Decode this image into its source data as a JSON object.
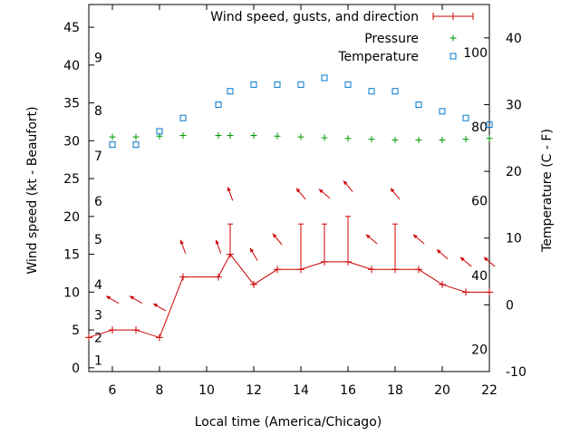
{
  "chart_data": {
    "type": "line",
    "xlabel": "Local time (America/Chicago)",
    "ylabel": "Wind speed (kt - Beaufort)",
    "y2label": "Temperature (C - F)",
    "xlim": [
      5,
      22
    ],
    "ylim": [
      -0.5,
      48
    ],
    "y2lim": [
      -10,
      45
    ],
    "xticks": [
      6,
      8,
      10,
      12,
      14,
      16,
      18,
      20,
      22
    ],
    "yticks": [
      0,
      5,
      10,
      15,
      20,
      25,
      30,
      35,
      40,
      45
    ],
    "y2ticks": [
      -10,
      0,
      10,
      20,
      30,
      40
    ],
    "beaufort_labels": [
      {
        "text": "1",
        "y": 1
      },
      {
        "text": "2",
        "y": 4
      },
      {
        "text": "3",
        "y": 7
      },
      {
        "text": "4",
        "y": 11
      },
      {
        "text": "5",
        "y": 17
      },
      {
        "text": "6",
        "y": 22
      },
      {
        "text": "7",
        "y": 28
      },
      {
        "text": "8",
        "y": 34
      },
      {
        "text": "9",
        "y": 41
      }
    ],
    "fahrenheit_labels": [
      {
        "text": "20",
        "c": -6.7
      },
      {
        "text": "40",
        "c": 4.4
      },
      {
        "text": "60",
        "c": 15.6
      },
      {
        "text": "80",
        "c": 26.7
      },
      {
        "text": "100",
        "c": 37.8
      }
    ],
    "legend": {
      "position": "top-right",
      "entries": [
        "Wind speed, gusts, and direction",
        "Pressure",
        "Temperature"
      ]
    },
    "colors": {
      "wind": "#cc0000",
      "pressure": "#009900",
      "temperature": "#0077cc",
      "arrow": "#cc0000"
    },
    "series": [
      {
        "name": "Wind speed, gusts, and direction",
        "kind": "wind",
        "x": [
          5,
          6,
          7,
          8,
          9,
          10.5,
          11,
          12,
          13,
          14,
          15,
          16,
          17,
          18,
          19,
          20,
          21,
          22
        ],
        "y": [
          4,
          5,
          5,
          4,
          12,
          12,
          15,
          11,
          13,
          13,
          14,
          14,
          13,
          13,
          13,
          11,
          10,
          10
        ],
        "gust": [
          null,
          null,
          null,
          null,
          null,
          null,
          19,
          null,
          null,
          19,
          19,
          20,
          null,
          19,
          null,
          null,
          null,
          null
        ]
      },
      {
        "name": "Pressure",
        "kind": "pressure",
        "x": [
          6,
          7,
          8,
          9,
          10.5,
          11,
          12,
          13,
          14,
          15,
          16,
          17,
          18,
          19,
          20,
          21,
          22
        ],
        "y": [
          30.5,
          30.5,
          30.6,
          30.7,
          30.7,
          30.7,
          30.7,
          30.6,
          30.5,
          30.4,
          30.3,
          30.2,
          30.1,
          30.1,
          30.1,
          30.2,
          30.3
        ]
      },
      {
        "name": "Temperature",
        "kind": "temperature",
        "x": [
          6,
          7,
          8,
          9,
          10.5,
          11,
          12,
          13,
          14,
          15,
          16,
          17,
          18,
          19,
          20,
          21,
          22
        ],
        "c": [
          24,
          24,
          26,
          28,
          30,
          32,
          33,
          33,
          33,
          34,
          33,
          32,
          32,
          30,
          29,
          28,
          27
        ]
      }
    ],
    "wind_direction_arrows": [
      {
        "x": 6,
        "y": 9,
        "angle": 300
      },
      {
        "x": 7,
        "y": 9,
        "angle": 300
      },
      {
        "x": 8,
        "y": 8,
        "angle": 300
      },
      {
        "x": 9,
        "y": 16,
        "angle": 340
      },
      {
        "x": 10.5,
        "y": 16,
        "angle": 340
      },
      {
        "x": 11,
        "y": 23,
        "angle": 340
      },
      {
        "x": 12,
        "y": 15,
        "angle": 330
      },
      {
        "x": 13,
        "y": 17,
        "angle": 320
      },
      {
        "x": 14,
        "y": 23,
        "angle": 320
      },
      {
        "x": 15,
        "y": 23,
        "angle": 310
      },
      {
        "x": 16,
        "y": 24,
        "angle": 320
      },
      {
        "x": 17,
        "y": 17,
        "angle": 310
      },
      {
        "x": 18,
        "y": 23,
        "angle": 320
      },
      {
        "x": 19,
        "y": 17,
        "angle": 310
      },
      {
        "x": 20,
        "y": 15,
        "angle": 310
      },
      {
        "x": 21,
        "y": 14,
        "angle": 310
      },
      {
        "x": 22,
        "y": 14,
        "angle": 310
      }
    ]
  }
}
